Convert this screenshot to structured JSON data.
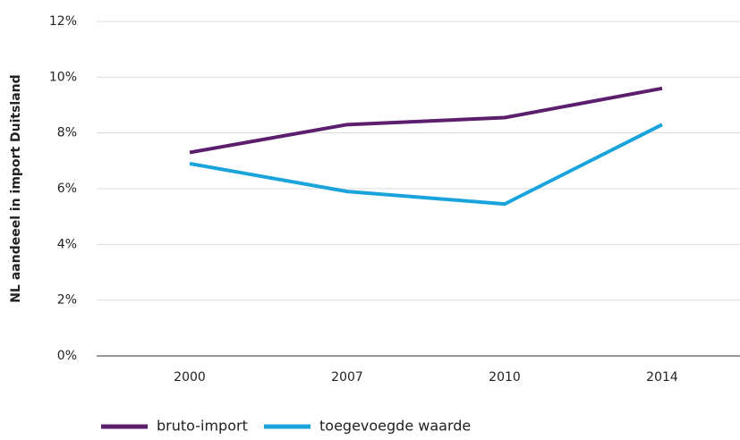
{
  "chart_data": {
    "type": "line",
    "y_label": "NL aandeeel in import Duitsland",
    "categories": [
      "2000",
      "2007",
      "2010",
      "2014"
    ],
    "series": [
      {
        "name": "bruto-import",
        "color": "#5b1f6e",
        "values": [
          7.3,
          8.3,
          8.55,
          9.6
        ]
      },
      {
        "name": "toegevoegde waarde",
        "color": "#1ba3dc",
        "values": [
          6.9,
          5.9,
          5.45,
          8.3
        ]
      }
    ],
    "ylim": [
      0,
      12
    ],
    "yticks": [
      {
        "value": 0,
        "label": "0%"
      },
      {
        "value": 2,
        "label": "2%"
      },
      {
        "value": 4,
        "label": "4%"
      },
      {
        "value": 6,
        "label": "6%"
      },
      {
        "value": 8,
        "label": "8%"
      },
      {
        "value": 10,
        "label": "10%"
      },
      {
        "value": 12,
        "label": "12%"
      }
    ],
    "grid": true
  }
}
